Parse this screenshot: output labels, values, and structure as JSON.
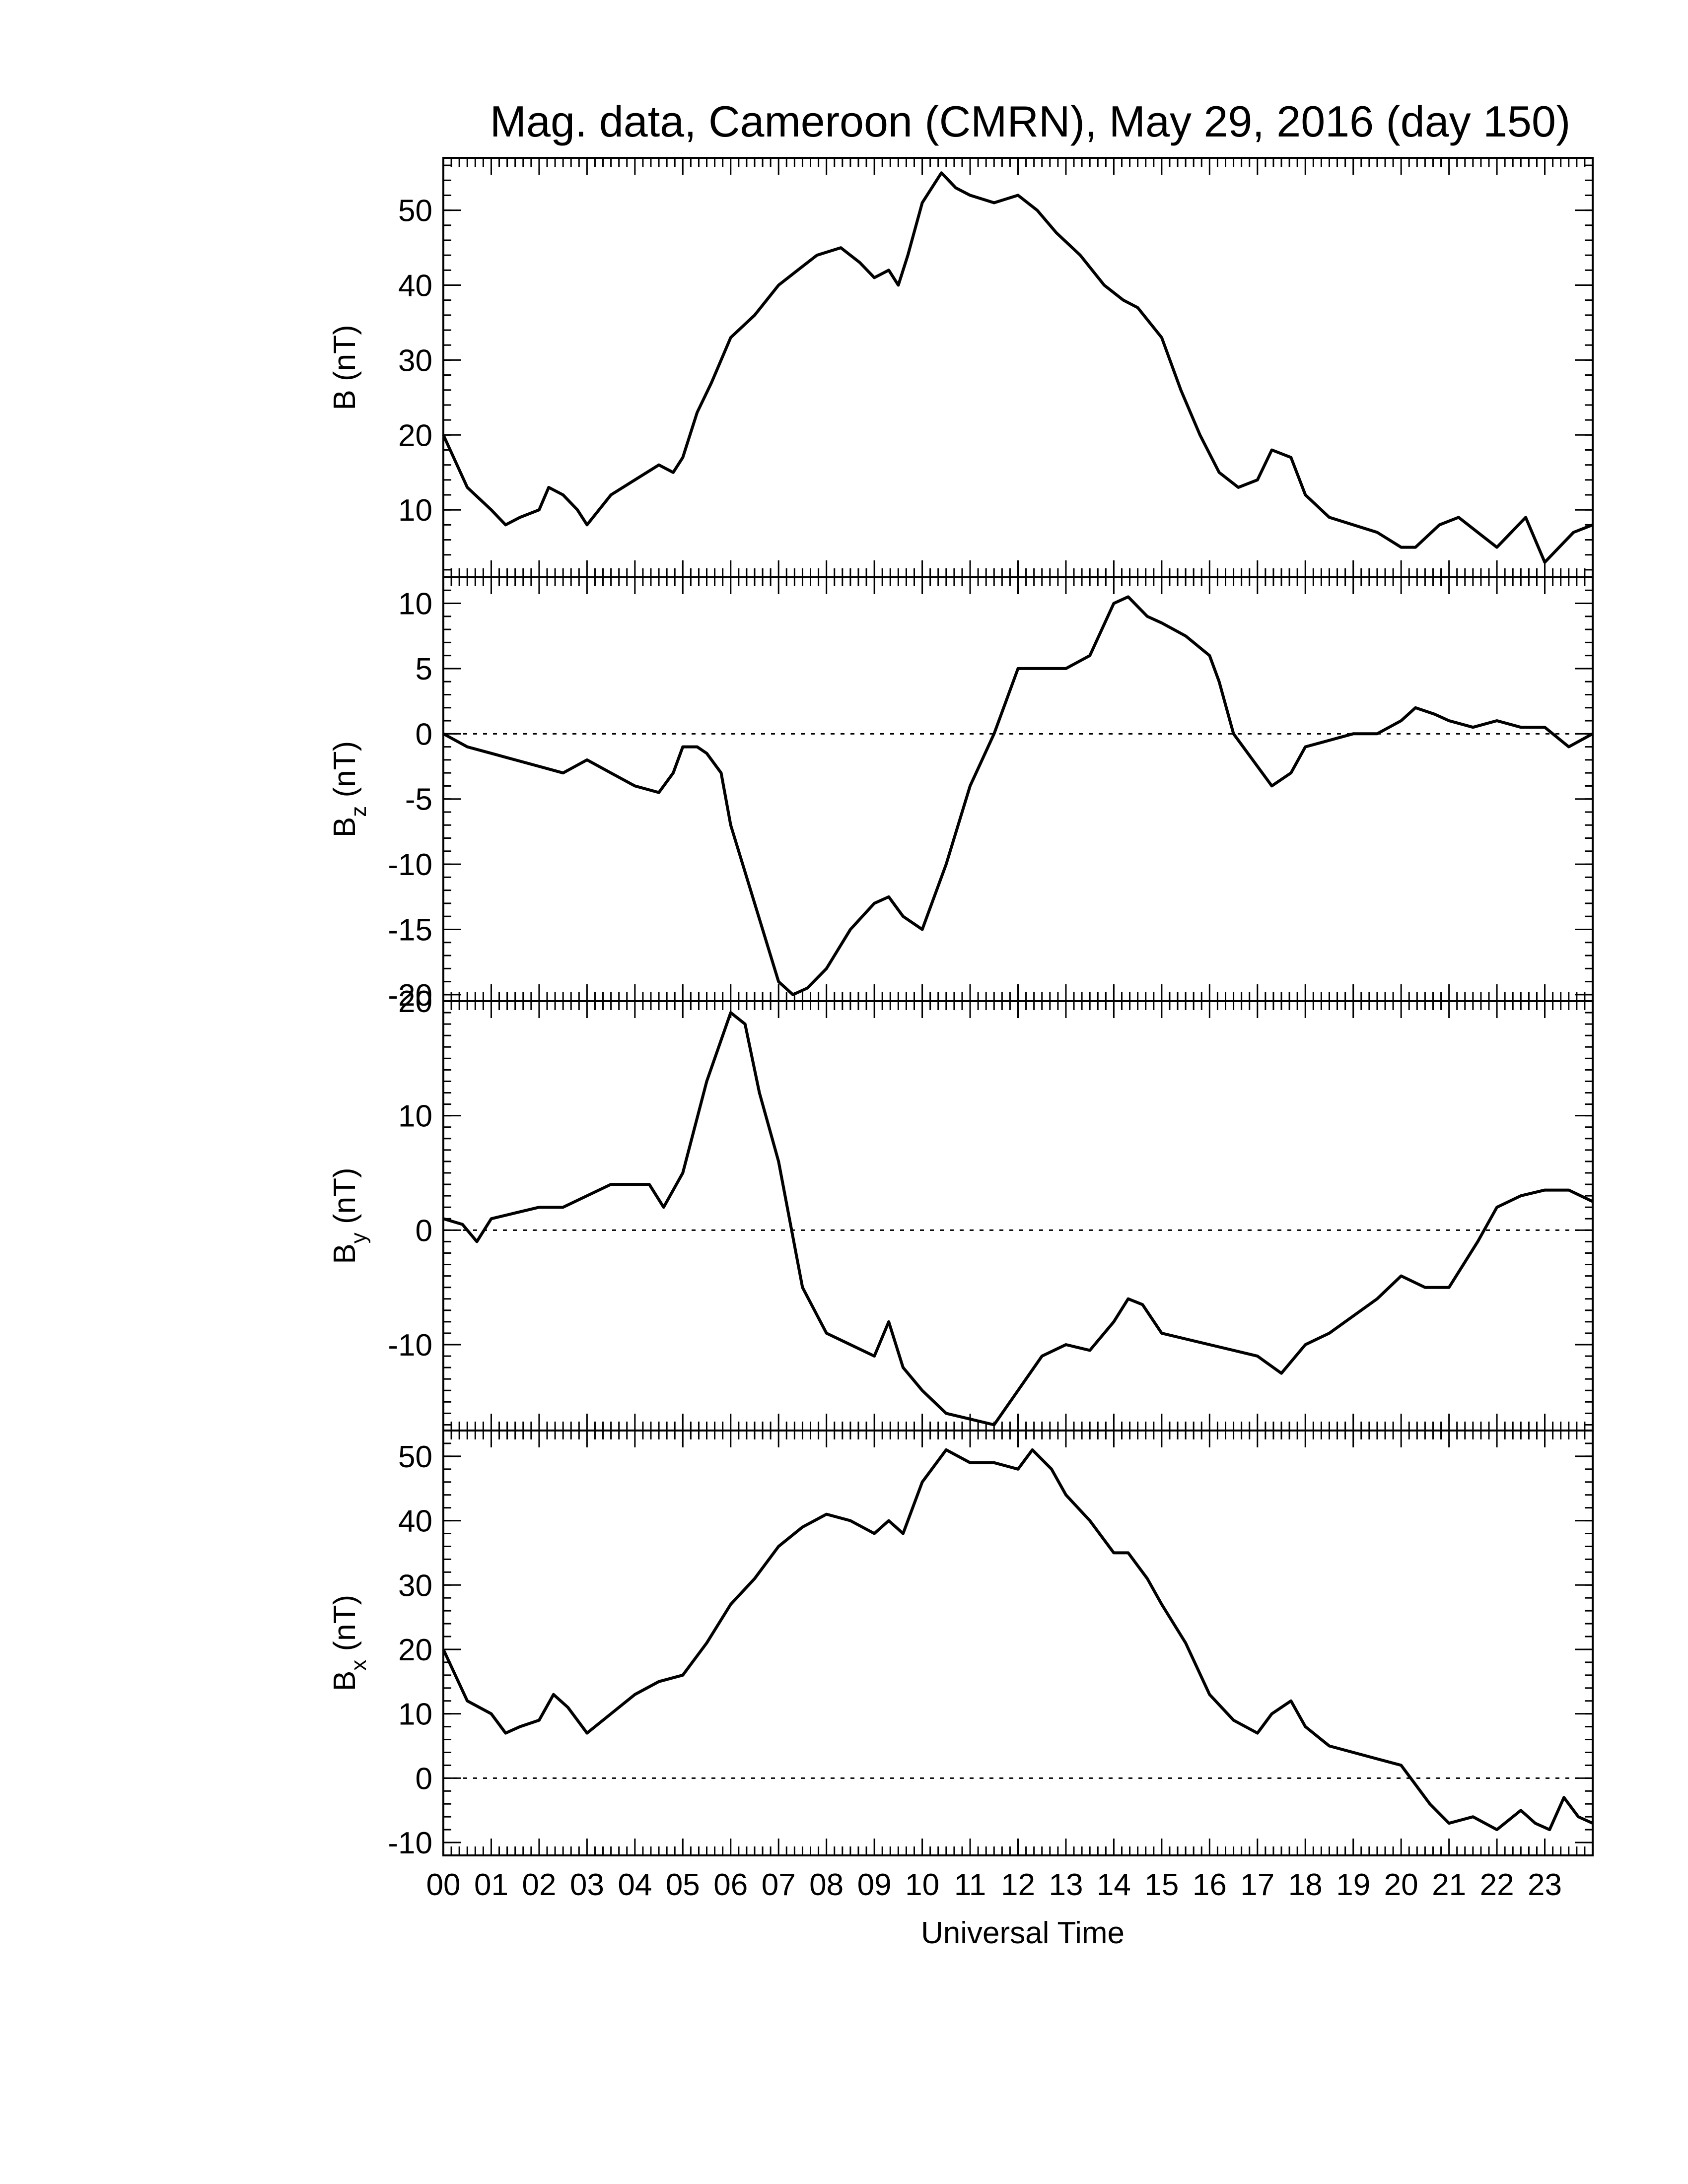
{
  "chart_data": {
    "title": "Mag. data, Cameroon (CMRN), May 29, 2016 (day 150)",
    "xlabel": "Universal Time",
    "xlim": [
      0,
      24
    ],
    "x_tick_labels": [
      "00",
      "01",
      "02",
      "03",
      "04",
      "05",
      "06",
      "07",
      "08",
      "09",
      "10",
      "11",
      "12",
      "13",
      "14",
      "15",
      "16",
      "17",
      "18",
      "19",
      "20",
      "21",
      "22",
      "23"
    ],
    "panels": [
      {
        "type": "line",
        "ylabel": "B (nT)",
        "ylabel_main": "B",
        "ylabel_sub": "",
        "ylabel_unit": " (nT)",
        "ylim": [
          1,
          57
        ],
        "yticks": [
          10,
          20,
          30,
          40,
          50
        ],
        "zero_line": false,
        "x": [
          0.0,
          0.5,
          1.0,
          1.3,
          1.6,
          2.0,
          2.2,
          2.5,
          2.8,
          3.0,
          3.5,
          4.0,
          4.5,
          4.8,
          5.0,
          5.3,
          5.6,
          6.0,
          6.5,
          7.0,
          7.4,
          7.8,
          8.3,
          8.7,
          9.0,
          9.3,
          9.5,
          9.7,
          10.0,
          10.4,
          10.7,
          11.0,
          11.5,
          12.0,
          12.4,
          12.8,
          13.3,
          13.8,
          14.2,
          14.5,
          15.0,
          15.4,
          15.8,
          16.2,
          16.6,
          17.0,
          17.3,
          17.7,
          18.0,
          18.5,
          19.0,
          19.5,
          20.0,
          20.3,
          20.8,
          21.2,
          21.6,
          22.0,
          22.3,
          22.6,
          23.0,
          23.3,
          23.6,
          24.0
        ],
        "values": [
          20,
          13,
          10,
          8,
          9,
          10,
          13,
          12,
          10,
          8,
          12,
          14,
          16,
          15,
          17,
          23,
          27,
          33,
          36,
          40,
          42,
          44,
          45,
          43,
          41,
          42,
          40,
          44,
          51,
          55,
          53,
          52,
          51,
          52,
          50,
          47,
          44,
          40,
          38,
          37,
          33,
          26,
          20,
          15,
          13,
          14,
          18,
          17,
          12,
          9,
          8,
          7,
          5,
          5,
          8,
          9,
          7,
          5,
          7,
          9,
          3,
          5,
          7,
          8
        ]
      },
      {
        "type": "line",
        "ylabel": "Bz (nT)",
        "ylabel_main": "B",
        "ylabel_sub": "z",
        "ylabel_unit": " (nT)",
        "ylim": [
          -20.5,
          12
        ],
        "yticks": [
          -20,
          -15,
          -10,
          -5,
          0,
          5,
          10
        ],
        "zero_line": true,
        "x": [
          0.0,
          0.5,
          1.0,
          1.5,
          2.0,
          2.5,
          3.0,
          3.5,
          4.0,
          4.5,
          4.8,
          5.0,
          5.3,
          5.5,
          5.8,
          6.0,
          6.5,
          7.0,
          7.3,
          7.6,
          8.0,
          8.5,
          9.0,
          9.3,
          9.6,
          10.0,
          10.5,
          11.0,
          11.5,
          12.0,
          12.3,
          12.7,
          13.0,
          13.5,
          14.0,
          14.3,
          14.7,
          15.0,
          15.5,
          16.0,
          16.2,
          16.5,
          16.8,
          17.0,
          17.3,
          17.7,
          18.0,
          18.5,
          19.0,
          19.5,
          20.0,
          20.3,
          20.7,
          21.0,
          21.5,
          22.0,
          22.5,
          23.0,
          23.5,
          24.0
        ],
        "values": [
          0,
          -1,
          -1.5,
          -2,
          -2.5,
          -3,
          -2,
          -3,
          -4,
          -4.5,
          -3,
          -1,
          -1,
          -1.5,
          -3,
          -7,
          -13,
          -19,
          -20,
          -19.5,
          -18,
          -15,
          -13,
          -12.5,
          -14,
          -15,
          -10,
          -4,
          0,
          5,
          5,
          5,
          5,
          6,
          10,
          10.5,
          9,
          8.5,
          7.5,
          6,
          4,
          0,
          -1.5,
          -2.5,
          -4,
          -3,
          -1,
          -0.5,
          0,
          0,
          1,
          2,
          1.5,
          1,
          0.5,
          1,
          0.5,
          0.5,
          -1,
          0
        ]
      },
      {
        "type": "line",
        "ylabel": "By (nT)",
        "ylabel_main": "B",
        "ylabel_sub": "y",
        "ylabel_unit": " (nT)",
        "ylim": [
          -17.5,
          20
        ],
        "yticks": [
          -10,
          0,
          10,
          20
        ],
        "zero_line": true,
        "x": [
          0.0,
          0.4,
          0.7,
          1.0,
          1.5,
          2.0,
          2.5,
          3.0,
          3.5,
          4.0,
          4.3,
          4.6,
          5.0,
          5.5,
          6.0,
          6.3,
          6.6,
          7.0,
          7.5,
          8.0,
          8.5,
          9.0,
          9.3,
          9.6,
          10.0,
          10.5,
          11.0,
          11.5,
          12.0,
          12.5,
          13.0,
          13.5,
          14.0,
          14.3,
          14.6,
          15.0,
          15.5,
          16.0,
          16.5,
          17.0,
          17.5,
          18.0,
          18.5,
          19.0,
          19.5,
          20.0,
          20.5,
          21.0,
          21.3,
          21.6,
          22.0,
          22.5,
          23.0,
          23.5,
          24.0
        ],
        "values": [
          1,
          0.5,
          -1,
          1,
          1.5,
          2,
          2,
          3,
          4,
          4,
          4,
          2,
          5,
          13,
          19,
          18,
          12,
          6,
          -5,
          -9,
          -10,
          -11,
          -8,
          -12,
          -14,
          -16,
          -16.5,
          -17,
          -14,
          -11,
          -10,
          -10.5,
          -8,
          -6,
          -6.5,
          -9,
          -9.5,
          -10,
          -10.5,
          -11,
          -12.5,
          -10,
          -9,
          -7.5,
          -6,
          -4,
          -5,
          -5,
          -3,
          -1,
          2,
          3,
          3.5,
          3.5,
          2.5
        ]
      },
      {
        "type": "line",
        "ylabel": "Bx (nT)",
        "ylabel_main": "B",
        "ylabel_sub": "x",
        "ylabel_unit": " (nT)",
        "ylim": [
          -12,
          54
        ],
        "yticks": [
          -10,
          0,
          10,
          20,
          30,
          40,
          50
        ],
        "zero_line": true,
        "x": [
          0.0,
          0.5,
          1.0,
          1.3,
          1.6,
          2.0,
          2.3,
          2.6,
          3.0,
          3.5,
          4.0,
          4.5,
          5.0,
          5.5,
          6.0,
          6.5,
          7.0,
          7.5,
          8.0,
          8.5,
          9.0,
          9.3,
          9.6,
          10.0,
          10.5,
          11.0,
          11.5,
          12.0,
          12.3,
          12.7,
          13.0,
          13.5,
          14.0,
          14.3,
          14.7,
          15.0,
          15.5,
          16.0,
          16.5,
          17.0,
          17.3,
          17.7,
          18.0,
          18.5,
          19.0,
          19.5,
          20.0,
          20.3,
          20.6,
          21.0,
          21.5,
          22.0,
          22.5,
          22.8,
          23.1,
          23.4,
          23.7,
          24.0
        ],
        "values": [
          20,
          12,
          10,
          7,
          8,
          9,
          13,
          11,
          7,
          10,
          13,
          15,
          16,
          21,
          27,
          31,
          36,
          39,
          41,
          40,
          38,
          40,
          38,
          46,
          51,
          49,
          49,
          48,
          51,
          48,
          44,
          40,
          35,
          35,
          31,
          27,
          21,
          13,
          9,
          7,
          10,
          12,
          8,
          5,
          4,
          3,
          2,
          -1,
          -4,
          -7,
          -6,
          -8,
          -5,
          -7,
          -8,
          -3,
          -6,
          -7
        ]
      }
    ]
  }
}
